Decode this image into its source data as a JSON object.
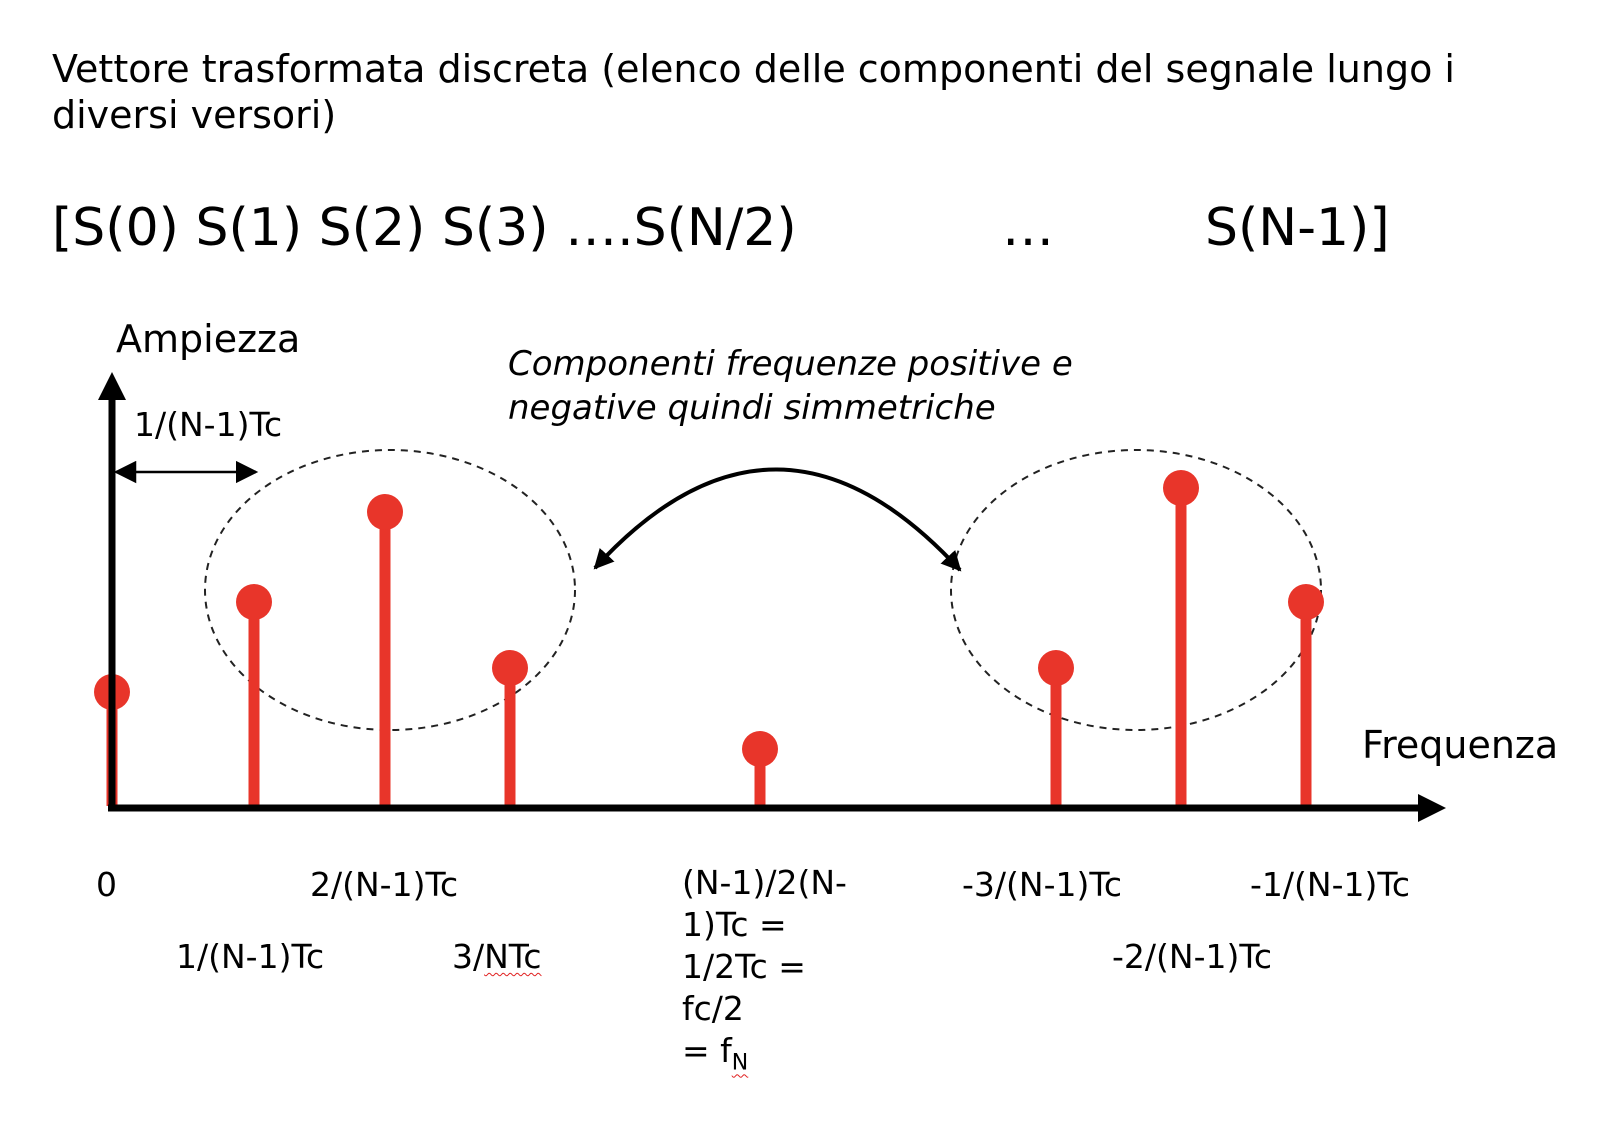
{
  "title": "Vettore trasformata discreta (elenco delle componenti del segnale lungo i diversi versori)",
  "vector": {
    "part1": "[S(0) S(1) S(2) S(3) ….S(N/2)",
    "ellipsis": "…",
    "part3": "S(N-1)]"
  },
  "axes": {
    "y_label": "Ampiezza",
    "x_label": "Frequenza",
    "spacing_label": "1/(N-1)Tc"
  },
  "annotation": {
    "line1": "Componenti frequenze positive e",
    "line2": "negative quindi simmetriche"
  },
  "tick_labels": {
    "zero": "0",
    "one": "1/(N-1)Tc",
    "two": "2/(N-1)Tc",
    "three_prefix": "3/",
    "three_squiggle": "NTc",
    "neg_three": "-3/(N-1)Tc",
    "neg_two": "-2/(N-1)Tc",
    "neg_one": "-1/(N-1)Tc"
  },
  "nyquist": {
    "line1": "(N-1)/2(N-",
    "line2": "1)Tc =",
    "line3": "1/2Tc =",
    "line4": "fc/2",
    "line5_prefix": "= f",
    "line5_sub": "N"
  },
  "colors": {
    "stem": "#e8352a",
    "axis": "#000000",
    "ellipse": "#222222"
  },
  "stems": [
    {
      "name": "stem-S0",
      "amplitude": 0.38
    },
    {
      "name": "stem-S1",
      "amplitude": 0.68
    },
    {
      "name": "stem-S2",
      "amplitude": 0.98
    },
    {
      "name": "stem-S3",
      "amplitude": 0.46
    },
    {
      "name": "stem-SN2",
      "amplitude": 0.19
    },
    {
      "name": "stem-S-3",
      "amplitude": 0.46
    },
    {
      "name": "stem-S-2",
      "amplitude": 1.06
    },
    {
      "name": "stem-S-1",
      "amplitude": 0.68
    }
  ]
}
